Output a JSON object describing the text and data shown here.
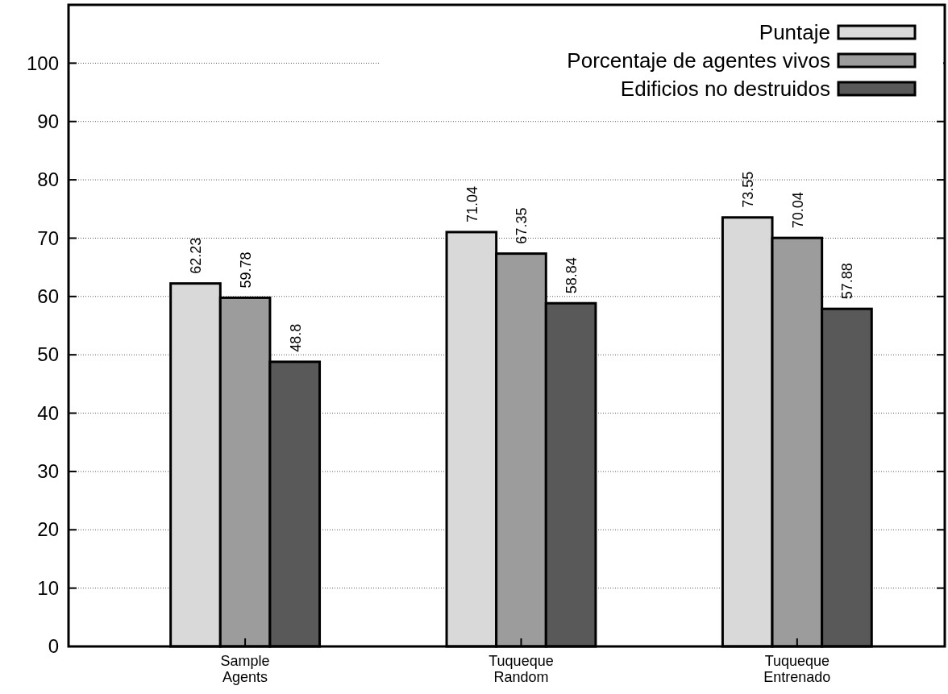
{
  "chart_data": {
    "type": "bar",
    "categories": [
      "Sample Agents",
      "Tuqueque Random",
      "Tuqueque Entrenado"
    ],
    "series": [
      {
        "name": "Puntaje",
        "color": "#d9d9d9",
        "values": [
          62.23,
          71.04,
          73.55
        ]
      },
      {
        "name": "Porcentaje de agentes vivos",
        "color": "#9c9c9c",
        "values": [
          59.78,
          67.35,
          70.04
        ]
      },
      {
        "name": "Edificios no destruidos",
        "color": "#595959",
        "values": [
          48.8,
          58.84,
          57.88
        ]
      }
    ],
    "ylim": [
      0,
      110
    ],
    "yticks": [
      0,
      10,
      20,
      30,
      40,
      50,
      60,
      70,
      80,
      90,
      100
    ],
    "grid": "y",
    "legend": "top right",
    "data_labels": true
  }
}
